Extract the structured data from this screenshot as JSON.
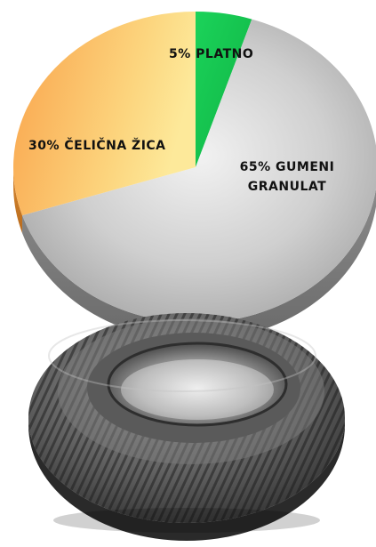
{
  "chart_data": {
    "type": "pie",
    "title": "",
    "style": "3d",
    "slices": [
      {
        "label": "5% PLATNO",
        "value": 5,
        "color": "#16c94f"
      },
      {
        "label": "65% GUMENI GRANULAT",
        "label_lines": [
          "65% GUMENI",
          "GRANULAT"
        ],
        "value": 65,
        "color": "#c9c9c9"
      },
      {
        "label": "30% ČELIČNA ŽICA",
        "value": 30,
        "color": "#fbc06a"
      }
    ]
  },
  "illustration": {
    "icon": "car-tire-icon"
  }
}
